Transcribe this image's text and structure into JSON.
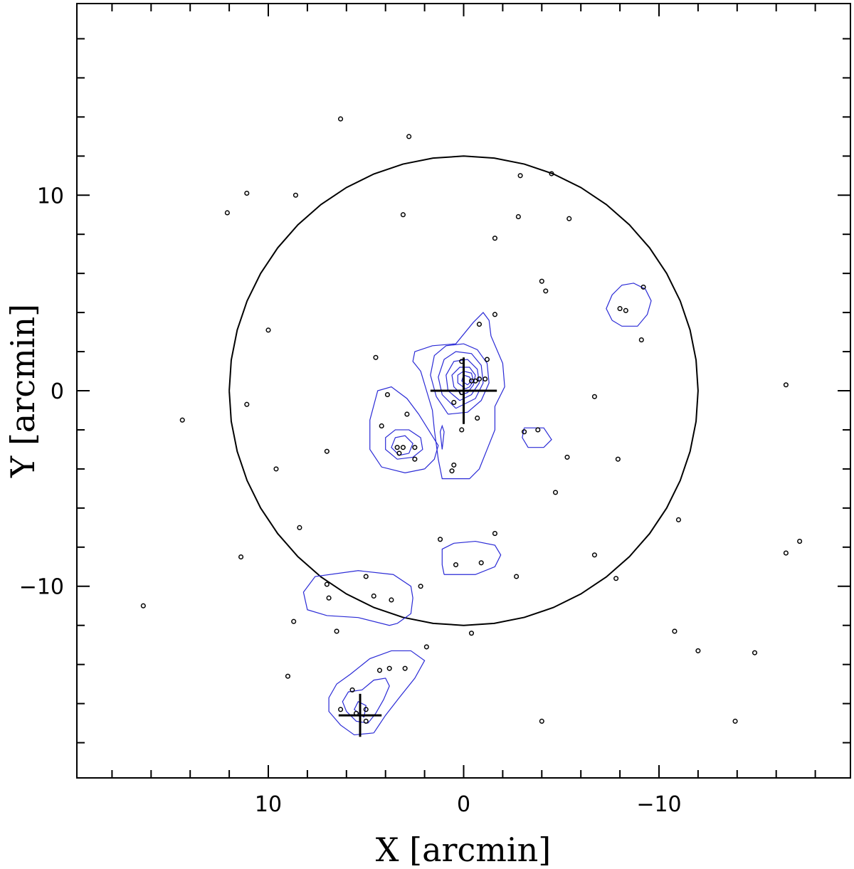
{
  "chart_data": {
    "type": "scatter",
    "title": "",
    "xlabel": "X [arcmin]",
    "ylabel": "Y [arcmin]",
    "xlim": [
      19.8,
      -19.8
    ],
    "ylim": [
      -19.8,
      19.8
    ],
    "x_ticks": [
      10,
      0,
      -10
    ],
    "x_tick_labels": [
      "10",
      "0",
      "−10"
    ],
    "y_ticks": [
      10,
      0,
      -10
    ],
    "y_tick_labels": [
      "10",
      "0",
      "−10"
    ],
    "grid": false,
    "legend": "none",
    "colors": {
      "points": "#000000",
      "contours": "#2a2ad6",
      "frame": "#000000"
    },
    "circle": {
      "center": [
        0,
        0
      ],
      "radius": 12
    },
    "crosses": [
      {
        "x": 0,
        "y": 0,
        "half_width": 1.7,
        "half_height": 1.7
      },
      {
        "x": 5.3,
        "y": -16.6,
        "half_width": 1.1,
        "half_height": 1.1
      }
    ],
    "points": [
      [
        6.3,
        13.9
      ],
      [
        2.8,
        13.0
      ],
      [
        12.1,
        9.1
      ],
      [
        11.1,
        10.1
      ],
      [
        8.6,
        10.0
      ],
      [
        3.1,
        9.0
      ],
      [
        -2.9,
        11.0
      ],
      [
        -4.5,
        11.1
      ],
      [
        -2.8,
        8.9
      ],
      [
        -5.4,
        8.8
      ],
      [
        -1.6,
        7.8
      ],
      [
        -4.0,
        5.6
      ],
      [
        -4.2,
        5.1
      ],
      [
        -9.2,
        5.3
      ],
      [
        -8.0,
        4.2
      ],
      [
        -8.3,
        4.1
      ],
      [
        -1.6,
        3.9
      ],
      [
        -0.8,
        3.4
      ],
      [
        -9.1,
        2.6
      ],
      [
        10.0,
        3.1
      ],
      [
        4.5,
        1.7
      ],
      [
        -1.2,
        1.6
      ],
      [
        0.1,
        1.5
      ],
      [
        -0.4,
        0.5
      ],
      [
        -0.6,
        0.5
      ],
      [
        -0.8,
        0.6
      ],
      [
        -1.1,
        0.6
      ],
      [
        0.1,
        -0.1
      ],
      [
        0.5,
        -0.6
      ],
      [
        3.9,
        -0.2
      ],
      [
        -6.7,
        -0.3
      ],
      [
        -16.5,
        0.3
      ],
      [
        11.1,
        -0.7
      ],
      [
        14.4,
        -1.5
      ],
      [
        2.9,
        -1.2
      ],
      [
        4.2,
        -1.8
      ],
      [
        -0.7,
        -1.4
      ],
      [
        0.1,
        -2.0
      ],
      [
        -3.1,
        -2.1
      ],
      [
        -3.8,
        -2.0
      ],
      [
        3.4,
        -2.9
      ],
      [
        3.1,
        -2.9
      ],
      [
        3.3,
        -3.2
      ],
      [
        2.5,
        -2.9
      ],
      [
        2.5,
        -3.5
      ],
      [
        7.0,
        -3.1
      ],
      [
        -5.3,
        -3.4
      ],
      [
        -7.9,
        -3.5
      ],
      [
        0.5,
        -3.8
      ],
      [
        0.6,
        -4.1
      ],
      [
        9.6,
        -4.0
      ],
      [
        -4.7,
        -5.2
      ],
      [
        -11.0,
        -6.6
      ],
      [
        8.4,
        -7.0
      ],
      [
        1.2,
        -7.6
      ],
      [
        -1.6,
        -7.3
      ],
      [
        -16.5,
        -8.3
      ],
      [
        -17.2,
        -7.7
      ],
      [
        -6.7,
        -8.4
      ],
      [
        11.4,
        -8.5
      ],
      [
        0.4,
        -8.9
      ],
      [
        -0.9,
        -8.8
      ],
      [
        5.0,
        -9.5
      ],
      [
        -2.7,
        -9.5
      ],
      [
        -7.8,
        -9.6
      ],
      [
        7.0,
        -9.9
      ],
      [
        2.2,
        -10.0
      ],
      [
        6.9,
        -10.6
      ],
      [
        4.6,
        -10.5
      ],
      [
        3.7,
        -10.7
      ],
      [
        16.4,
        -11.0
      ],
      [
        8.7,
        -11.8
      ],
      [
        6.5,
        -12.3
      ],
      [
        -0.4,
        -12.4
      ],
      [
        -10.8,
        -12.3
      ],
      [
        1.9,
        -13.1
      ],
      [
        -12.0,
        -13.3
      ],
      [
        -14.9,
        -13.4
      ],
      [
        9.0,
        -14.6
      ],
      [
        4.3,
        -14.3
      ],
      [
        3.8,
        -14.2
      ],
      [
        3.0,
        -14.2
      ],
      [
        5.7,
        -15.3
      ],
      [
        6.3,
        -16.3
      ],
      [
        5.5,
        -16.5
      ],
      [
        5.0,
        -16.3
      ],
      [
        5.0,
        -16.9
      ],
      [
        -4.0,
        -16.9
      ],
      [
        -13.9,
        -16.9
      ]
    ],
    "contours": [
      [
        [
          0.5,
          -4.5
        ],
        [
          1.1,
          -4.5
        ],
        [
          1.3,
          -3.5
        ],
        [
          1.5,
          -2.0
        ],
        [
          1.6,
          -1.0
        ],
        [
          1.9,
          0.0
        ],
        [
          2.2,
          1.0
        ],
        [
          2.6,
          1.5
        ],
        [
          2.5,
          2.0
        ],
        [
          1.6,
          2.3
        ],
        [
          0.4,
          2.4
        ],
        [
          -0.5,
          3.5
        ],
        [
          -1.0,
          4.0
        ],
        [
          -1.3,
          3.6
        ],
        [
          -1.4,
          2.8
        ],
        [
          -2.0,
          1.4
        ],
        [
          -2.1,
          0.2
        ],
        [
          -1.6,
          -0.8
        ],
        [
          -1.6,
          -2.0
        ],
        [
          -1.2,
          -3.0
        ],
        [
          -0.8,
          -4.0
        ],
        [
          -0.3,
          -4.5
        ],
        [
          0.5,
          -4.5
        ]
      ],
      [
        [
          0.8,
          -1.2
        ],
        [
          1.4,
          -0.3
        ],
        [
          1.7,
          0.8
        ],
        [
          1.5,
          1.8
        ],
        [
          0.9,
          2.3
        ],
        [
          0.0,
          2.4
        ],
        [
          -0.7,
          2.1
        ],
        [
          -1.2,
          1.4
        ],
        [
          -1.3,
          0.4
        ],
        [
          -0.9,
          -0.5
        ],
        [
          -0.2,
          -1.1
        ],
        [
          0.8,
          -1.2
        ]
      ],
      [
        [
          0.4,
          -0.9
        ],
        [
          1.1,
          -0.2
        ],
        [
          1.3,
          0.7
        ],
        [
          1.0,
          1.6
        ],
        [
          0.4,
          2.0
        ],
        [
          -0.4,
          1.9
        ],
        [
          -0.9,
          1.3
        ],
        [
          -1.0,
          0.4
        ],
        [
          -0.6,
          -0.4
        ],
        [
          0.4,
          -0.9
        ]
      ],
      [
        [
          0.2,
          -0.5
        ],
        [
          0.8,
          0.0
        ],
        [
          0.9,
          0.8
        ],
        [
          0.5,
          1.5
        ],
        [
          -0.2,
          1.6
        ],
        [
          -0.7,
          1.1
        ],
        [
          -0.8,
          0.4
        ],
        [
          -0.4,
          -0.2
        ],
        [
          0.2,
          -0.5
        ]
      ],
      [
        [
          0.1,
          -0.2
        ],
        [
          0.5,
          0.2
        ],
        [
          0.6,
          0.8
        ],
        [
          0.2,
          1.2
        ],
        [
          -0.3,
          1.2
        ],
        [
          -0.6,
          0.8
        ],
        [
          -0.5,
          0.3
        ],
        [
          -0.2,
          -0.1
        ],
        [
          0.1,
          -0.2
        ]
      ],
      [
        [
          -0.1,
          0.1
        ],
        [
          0.3,
          0.4
        ],
        [
          0.3,
          0.8
        ],
        [
          0.0,
          1.0
        ],
        [
          -0.4,
          0.9
        ],
        [
          -0.5,
          0.5
        ],
        [
          -0.3,
          0.2
        ],
        [
          -0.1,
          0.1
        ]
      ],
      [
        [
          -0.2,
          0.3
        ],
        [
          0.1,
          0.5
        ],
        [
          0.0,
          0.8
        ],
        [
          -0.3,
          0.7
        ],
        [
          -0.4,
          0.5
        ],
        [
          -0.2,
          0.3
        ]
      ],
      [
        [
          2.0,
          -4.0
        ],
        [
          3.0,
          -4.2
        ],
        [
          4.2,
          -3.9
        ],
        [
          4.8,
          -3.0
        ],
        [
          4.8,
          -1.5
        ],
        [
          4.4,
          0.0
        ],
        [
          3.7,
          0.2
        ],
        [
          2.9,
          -0.4
        ],
        [
          2.3,
          -1.2
        ],
        [
          1.8,
          -2.0
        ],
        [
          1.3,
          -2.8
        ],
        [
          1.5,
          -3.5
        ],
        [
          2.0,
          -4.0
        ]
      ],
      [
        [
          2.6,
          -3.4
        ],
        [
          3.4,
          -3.5
        ],
        [
          4.0,
          -3.0
        ],
        [
          4.0,
          -2.4
        ],
        [
          3.5,
          -2.0
        ],
        [
          2.8,
          -2.0
        ],
        [
          2.2,
          -2.4
        ],
        [
          2.1,
          -3.0
        ],
        [
          2.6,
          -3.4
        ]
      ],
      [
        [
          2.8,
          -3.2
        ],
        [
          3.3,
          -3.3
        ],
        [
          3.7,
          -2.9
        ],
        [
          3.5,
          -2.4
        ],
        [
          3.0,
          -2.3
        ],
        [
          2.6,
          -2.7
        ],
        [
          2.8,
          -3.2
        ]
      ],
      [
        [
          1.1,
          -3.0
        ],
        [
          1.0,
          -2.1
        ],
        [
          1.1,
          -1.8
        ],
        [
          1.2,
          -2.1
        ],
        [
          1.1,
          -3.0
        ]
      ],
      [
        [
          -3.1,
          -1.9
        ],
        [
          -4.1,
          -1.9
        ],
        [
          -4.5,
          -2.5
        ],
        [
          -4.1,
          -2.9
        ],
        [
          -3.3,
          -2.9
        ],
        [
          -3.0,
          -2.4
        ],
        [
          -3.1,
          -1.9
        ]
      ],
      [
        [
          -7.6,
          3.6
        ],
        [
          -8.1,
          3.3
        ],
        [
          -8.9,
          3.3
        ],
        [
          -9.4,
          3.9
        ],
        [
          -9.6,
          4.6
        ],
        [
          -9.3,
          5.2
        ],
        [
          -8.7,
          5.5
        ],
        [
          -8.1,
          5.4
        ],
        [
          -7.6,
          4.9
        ],
        [
          -7.3,
          4.2
        ],
        [
          -7.6,
          3.6
        ]
      ],
      [
        [
          1.0,
          -9.4
        ],
        [
          -0.6,
          -9.4
        ],
        [
          -1.6,
          -9.0
        ],
        [
          -1.9,
          -8.4
        ],
        [
          -1.6,
          -7.9
        ],
        [
          -0.6,
          -7.7
        ],
        [
          0.5,
          -7.8
        ],
        [
          1.1,
          -8.1
        ],
        [
          1.1,
          -8.9
        ],
        [
          1.0,
          -9.4
        ]
      ],
      [
        [
          3.4,
          -11.9
        ],
        [
          2.7,
          -11.4
        ],
        [
          2.6,
          -10.6
        ],
        [
          2.7,
          -10.0
        ],
        [
          3.6,
          -9.4
        ],
        [
          5.4,
          -9.2
        ],
        [
          7.6,
          -9.5
        ],
        [
          8.2,
          -10.3
        ],
        [
          8.0,
          -11.2
        ],
        [
          7.0,
          -11.5
        ],
        [
          5.4,
          -11.6
        ],
        [
          3.8,
          -12.0
        ],
        [
          3.4,
          -11.9
        ]
      ],
      [
        [
          4.6,
          -17.5
        ],
        [
          5.6,
          -17.6
        ],
        [
          6.3,
          -17.1
        ],
        [
          6.9,
          -16.4
        ],
        [
          6.9,
          -15.7
        ],
        [
          6.5,
          -15.0
        ],
        [
          5.8,
          -14.5
        ],
        [
          4.8,
          -13.7
        ],
        [
          3.7,
          -13.3
        ],
        [
          2.7,
          -13.3
        ],
        [
          2.0,
          -13.8
        ],
        [
          2.5,
          -14.7
        ],
        [
          3.3,
          -15.7
        ],
        [
          4.0,
          -16.6
        ],
        [
          4.6,
          -17.5
        ]
      ],
      [
        [
          4.9,
          -17.0
        ],
        [
          5.5,
          -16.9
        ],
        [
          6.0,
          -16.4
        ],
        [
          6.2,
          -15.9
        ],
        [
          5.9,
          -15.4
        ],
        [
          5.2,
          -15.3
        ],
        [
          4.6,
          -14.8
        ],
        [
          4.0,
          -14.7
        ],
        [
          3.8,
          -15.1
        ],
        [
          4.1,
          -15.8
        ],
        [
          4.5,
          -16.5
        ],
        [
          4.9,
          -17.0
        ]
      ],
      [
        [
          5.1,
          -16.7
        ],
        [
          5.6,
          -16.3
        ],
        [
          5.4,
          -15.9
        ],
        [
          5.0,
          -16.1
        ],
        [
          5.1,
          -16.7
        ]
      ]
    ]
  }
}
